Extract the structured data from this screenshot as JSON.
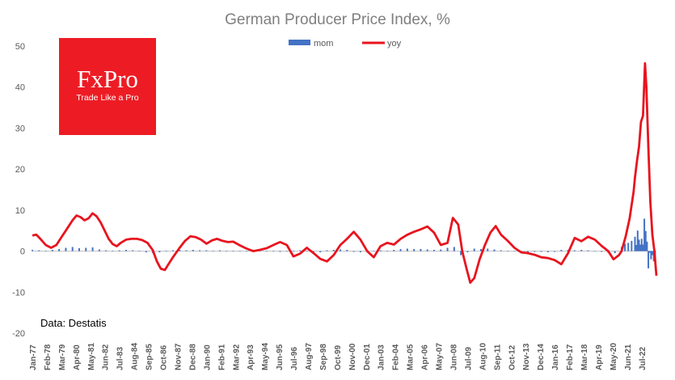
{
  "chart_data": {
    "type": "bar+line",
    "title": "German Producer Price Index, %",
    "ylim": [
      -20,
      50
    ],
    "yticks": [
      -20,
      -10,
      0,
      10,
      20,
      30,
      40,
      50
    ],
    "grid": false,
    "legend_position": "top",
    "x_tick_labels": [
      "Jan-77",
      "Feb-78",
      "Mar-79",
      "Apr-80",
      "May-81",
      "Jun-82",
      "Jul-83",
      "Aug-84",
      "Sep-85",
      "Oct-86",
      "Nov-87",
      "Dec-88",
      "Jan-90",
      "Feb-91",
      "Mar-92",
      "Apr-93",
      "May-94",
      "Jun-95",
      "Jul-96",
      "Aug-97",
      "Sep-98",
      "Oct-99",
      "Nov-00",
      "Dec-01",
      "Jan-03",
      "Feb-04",
      "Mar-05",
      "Apr-06",
      "May-07",
      "Jun-08",
      "Jul-09",
      "Aug-10",
      "Sep-11",
      "Oct-12",
      "Nov-13",
      "Dec-14",
      "Jan-16",
      "Feb-17",
      "Mar-18",
      "Apr-19",
      "May-20",
      "Jun-21",
      "Jul-22"
    ],
    "series": [
      {
        "name": "mom",
        "kind": "bar",
        "color": "#4472c4",
        "x": [
          1977.0,
          1977.5,
          1978.0,
          1978.5,
          1979.0,
          1979.5,
          1980.0,
          1980.5,
          1981.0,
          1981.5,
          1982.0,
          1982.5,
          1983.0,
          1983.5,
          1984.0,
          1984.5,
          1985.0,
          1985.5,
          1986.0,
          1986.5,
          1987.0,
          1987.5,
          1988.0,
          1988.5,
          1989.0,
          1989.5,
          1990.0,
          1990.5,
          1991.0,
          1991.5,
          1992.0,
          1992.5,
          1993.0,
          1993.5,
          1994.0,
          1994.5,
          1995.0,
          1995.5,
          1996.0,
          1996.5,
          1997.0,
          1997.5,
          1998.0,
          1998.5,
          1999.0,
          1999.5,
          2000.0,
          2000.5,
          2001.0,
          2001.5,
          2002.0,
          2002.5,
          2003.0,
          2003.5,
          2004.0,
          2004.5,
          2005.0,
          2005.5,
          2006.0,
          2006.5,
          2007.0,
          2007.5,
          2008.0,
          2008.5,
          2009.0,
          2009.5,
          2010.0,
          2010.5,
          2011.0,
          2011.5,
          2012.0,
          2012.5,
          2013.0,
          2013.5,
          2014.0,
          2014.5,
          2015.0,
          2015.5,
          2016.0,
          2016.5,
          2017.0,
          2017.5,
          2018.0,
          2018.5,
          2019.0,
          2019.5,
          2020.0,
          2020.5,
          2021.0,
          2021.25,
          2021.5,
          2021.75,
          2022.0,
          2022.1,
          2022.2,
          2022.3,
          2022.4,
          2022.5,
          2022.6,
          2022.7,
          2022.8,
          2022.9,
          2023.0,
          2023.1,
          2023.2,
          2023.3,
          2023.4,
          2023.5
        ],
        "values": [
          0.3,
          0.2,
          0.1,
          0.3,
          0.5,
          0.8,
          1.0,
          0.7,
          0.8,
          0.9,
          0.4,
          0.2,
          0.1,
          0.2,
          0.3,
          0.2,
          0.1,
          -0.3,
          -0.5,
          -0.3,
          0.1,
          0.2,
          0.3,
          0.2,
          0.3,
          0.2,
          0.2,
          0.1,
          0.2,
          0.1,
          0.1,
          0.0,
          -0.1,
          0.0,
          0.1,
          0.1,
          0.1,
          -0.2,
          -0.1,
          0.1,
          0.2,
          0.0,
          -0.2,
          -0.3,
          0.2,
          0.3,
          0.4,
          0.3,
          -0.2,
          -0.3,
          0.1,
          0.1,
          0.2,
          0.1,
          0.3,
          0.5,
          0.6,
          0.5,
          0.5,
          0.4,
          0.3,
          0.4,
          0.8,
          1.0,
          -1.0,
          -0.3,
          0.6,
          0.5,
          0.6,
          0.4,
          0.2,
          0.0,
          -0.1,
          -0.2,
          -0.3,
          -0.2,
          -0.2,
          -0.3,
          -0.2,
          0.3,
          0.3,
          0.2,
          0.3,
          0.2,
          0.0,
          -0.2,
          -0.4,
          -0.5,
          1.0,
          1.8,
          2.0,
          2.5,
          3.5,
          1.5,
          5.0,
          2.8,
          1.6,
          3.0,
          1.6,
          7.9,
          4.9,
          2.3,
          -4.2,
          -0.4,
          -2.0,
          -1.0,
          -2.5,
          -1.5
        ]
      },
      {
        "name": "yoy",
        "kind": "line",
        "color": "#e8141e",
        "x": [
          1977.0,
          1977.3,
          1977.6,
          1978.0,
          1978.4,
          1978.8,
          1979.2,
          1979.6,
          1980.0,
          1980.3,
          1980.6,
          1980.9,
          1981.2,
          1981.5,
          1981.8,
          1982.1,
          1982.4,
          1982.7,
          1983.0,
          1983.3,
          1983.6,
          1984.0,
          1984.4,
          1984.8,
          1985.2,
          1985.6,
          1986.0,
          1986.3,
          1986.6,
          1986.9,
          1987.2,
          1987.5,
          1988.0,
          1988.4,
          1988.8,
          1989.2,
          1989.6,
          1990.0,
          1990.4,
          1990.8,
          1991.2,
          1991.6,
          1992.0,
          1992.5,
          1993.0,
          1993.5,
          1994.0,
          1994.5,
          1995.0,
          1995.5,
          1996.0,
          1996.5,
          1997.0,
          1997.5,
          1998.0,
          1998.5,
          1999.0,
          1999.5,
          2000.0,
          2000.5,
          2001.0,
          2001.5,
          2002.0,
          2002.5,
          2003.0,
          2003.5,
          2004.0,
          2004.5,
          2005.0,
          2005.5,
          2006.0,
          2006.5,
          2007.0,
          2007.5,
          2008.0,
          2008.4,
          2008.8,
          2009.1,
          2009.4,
          2009.7,
          2010.0,
          2010.4,
          2010.8,
          2011.2,
          2011.6,
          2012.0,
          2012.5,
          2013.0,
          2013.5,
          2014.0,
          2014.5,
          2015.0,
          2015.5,
          2016.0,
          2016.5,
          2017.0,
          2017.5,
          2018.0,
          2018.5,
          2019.0,
          2019.5,
          2020.0,
          2020.4,
          2020.8,
          2021.0,
          2021.3,
          2021.6,
          2021.9,
          2022.0,
          2022.15,
          2022.3,
          2022.45,
          2022.6,
          2022.75,
          2022.85,
          2023.0,
          2023.15,
          2023.3,
          2023.45,
          2023.6
        ],
        "values": [
          3.8,
          4.0,
          3.0,
          1.5,
          0.8,
          1.5,
          3.5,
          5.5,
          7.5,
          8.7,
          8.3,
          7.5,
          8.0,
          9.2,
          8.5,
          7.0,
          5.0,
          3.0,
          1.7,
          1.2,
          2.0,
          2.8,
          3.0,
          3.0,
          2.7,
          2.0,
          0.2,
          -2.5,
          -4.3,
          -4.6,
          -3.0,
          -1.5,
          0.8,
          2.5,
          3.6,
          3.4,
          2.8,
          1.8,
          2.6,
          3.0,
          2.5,
          2.2,
          2.3,
          1.4,
          0.6,
          0.0,
          0.3,
          0.7,
          1.5,
          2.2,
          1.5,
          -1.3,
          -0.6,
          0.8,
          -0.5,
          -1.9,
          -2.5,
          -1.0,
          1.5,
          3.0,
          4.7,
          2.8,
          0.0,
          -1.5,
          1.2,
          2.0,
          1.6,
          3.0,
          4.0,
          4.7,
          5.3,
          6.0,
          4.5,
          1.5,
          2.0,
          8.1,
          6.5,
          0.0,
          -4.0,
          -7.7,
          -6.6,
          -2.0,
          1.5,
          4.5,
          6.1,
          4.0,
          2.5,
          0.8,
          -0.3,
          -0.5,
          -0.9,
          -1.5,
          -1.7,
          -2.2,
          -3.2,
          -0.5,
          3.2,
          2.4,
          3.5,
          2.8,
          1.3,
          0.0,
          -2.0,
          -1.0,
          0.0,
          3.5,
          8.0,
          14.5,
          18.0,
          22.0,
          25.5,
          31.5,
          33.0,
          45.8,
          40.0,
          25.0,
          12.0,
          4.0,
          0.0,
          -6.0
        ]
      }
    ]
  },
  "logo": {
    "name": "FxPro",
    "tagline": "Trade Like a Pro",
    "color": "#ed1c24"
  },
  "source_note": "Data: Destatis"
}
